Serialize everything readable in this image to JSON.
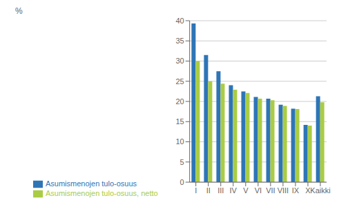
{
  "chart_data": {
    "type": "bar",
    "ylabel": "%",
    "categories": [
      "I",
      "II",
      "III",
      "IV",
      "V",
      "VI",
      "VII",
      "VIII",
      "IX",
      "X",
      "Kaikki"
    ],
    "series": [
      {
        "name": "Asumismenojen tulo-osuus",
        "color": "#2E75B6",
        "values": [
          39.3,
          31.5,
          27.5,
          24.0,
          22.5,
          21.1,
          20.7,
          19.2,
          18.2,
          14.2,
          21.3
        ]
      },
      {
        "name": "Asumismenojen tulo-osuus, netto",
        "color": "#AACC44",
        "values": [
          30.0,
          25.0,
          24.4,
          22.9,
          22.1,
          20.7,
          20.3,
          18.9,
          18.1,
          14.0,
          19.8
        ]
      }
    ],
    "ylim": [
      0,
      40
    ],
    "yticks": [
      0,
      5,
      10,
      15,
      20,
      25,
      30,
      35,
      40
    ],
    "grid": true,
    "legend": "lower left"
  }
}
